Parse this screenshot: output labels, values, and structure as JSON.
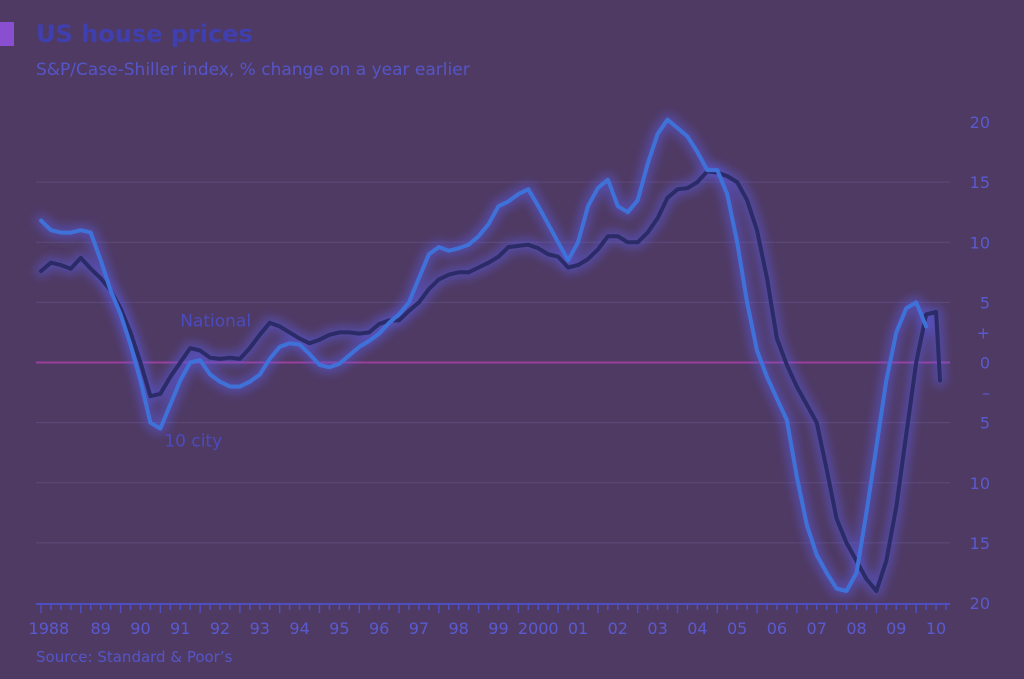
{
  "header": {
    "title": "US house prices",
    "subtitle": "S&P/Case-Shiller index, % change on a year earlier"
  },
  "footer": {
    "source": "Source: Standard & Poor’s"
  },
  "colors": {
    "background": "#4f3a63",
    "grid": "#5e4a78",
    "zero_line": "#9b3f9b",
    "national": "#2b2b68",
    "ten_city": "#3f72d8",
    "glow": "#5a5ae0",
    "text": "#5a5ad0"
  },
  "chart_data": {
    "type": "line",
    "title": "US house prices",
    "subtitle": "S&P/Case-Shiller index, % change on a year earlier",
    "xlabel": "",
    "ylabel": "",
    "x_range": [
      1988,
      2010.75
    ],
    "ylim": [
      -20,
      20
    ],
    "grid": true,
    "legend": "inline labels",
    "y_ticks": [
      {
        "value": 20,
        "label": "20"
      },
      {
        "value": 15,
        "label": "15"
      },
      {
        "value": 10,
        "label": "10"
      },
      {
        "value": 5,
        "label": "5"
      },
      {
        "value": 2.5,
        "label": "+"
      },
      {
        "value": 0,
        "label": "0"
      },
      {
        "value": -2.5,
        "label": "–"
      },
      {
        "value": -5,
        "label": "5"
      },
      {
        "value": -10,
        "label": "10"
      },
      {
        "value": -15,
        "label": "15"
      },
      {
        "value": -20,
        "label": "20"
      }
    ],
    "x_ticks": [
      {
        "value": 1988,
        "label": "1988"
      },
      {
        "value": 1989,
        "label": "89"
      },
      {
        "value": 1990,
        "label": "90"
      },
      {
        "value": 1991,
        "label": "91"
      },
      {
        "value": 1992,
        "label": "92"
      },
      {
        "value": 1993,
        "label": "93"
      },
      {
        "value": 1994,
        "label": "94"
      },
      {
        "value": 1995,
        "label": "95"
      },
      {
        "value": 1996,
        "label": "96"
      },
      {
        "value": 1997,
        "label": "97"
      },
      {
        "value": 1998,
        "label": "98"
      },
      {
        "value": 1999,
        "label": "99"
      },
      {
        "value": 2000,
        "label": "2000"
      },
      {
        "value": 2001,
        "label": "01"
      },
      {
        "value": 2002,
        "label": "02"
      },
      {
        "value": 2003,
        "label": "03"
      },
      {
        "value": 2004,
        "label": "04"
      },
      {
        "value": 2005,
        "label": "05"
      },
      {
        "value": 2006,
        "label": "06"
      },
      {
        "value": 2007,
        "label": "07"
      },
      {
        "value": 2008,
        "label": "08"
      },
      {
        "value": 2009,
        "label": "09"
      },
      {
        "value": 2010,
        "label": "10"
      }
    ],
    "series": [
      {
        "name": "National",
        "label_at": [
          1991.5,
          3
        ],
        "points": [
          [
            1988.0,
            7.6
          ],
          [
            1988.25,
            8.3
          ],
          [
            1988.5,
            8.1
          ],
          [
            1988.75,
            7.8
          ],
          [
            1989.0,
            8.7
          ],
          [
            1989.25,
            7.8
          ],
          [
            1989.5,
            7.0
          ],
          [
            1989.75,
            6.0
          ],
          [
            1990.0,
            4.5
          ],
          [
            1990.25,
            2.5
          ],
          [
            1990.5,
            0.0
          ],
          [
            1990.75,
            -2.8
          ],
          [
            1991.0,
            -2.6
          ],
          [
            1991.25,
            -1.2
          ],
          [
            1991.5,
            0.0
          ],
          [
            1991.75,
            1.2
          ],
          [
            1992.0,
            1.0
          ],
          [
            1992.25,
            0.4
          ],
          [
            1992.5,
            0.3
          ],
          [
            1992.75,
            0.4
          ],
          [
            1993.0,
            0.3
          ],
          [
            1993.25,
            1.2
          ],
          [
            1993.5,
            2.3
          ],
          [
            1993.75,
            3.3
          ],
          [
            1994.0,
            3.0
          ],
          [
            1994.25,
            2.5
          ],
          [
            1994.5,
            2.0
          ],
          [
            1994.75,
            1.6
          ],
          [
            1995.0,
            1.9
          ],
          [
            1995.25,
            2.3
          ],
          [
            1995.5,
            2.5
          ],
          [
            1995.75,
            2.5
          ],
          [
            1996.0,
            2.4
          ],
          [
            1996.25,
            2.5
          ],
          [
            1996.5,
            3.2
          ],
          [
            1996.75,
            3.5
          ],
          [
            1997.0,
            3.5
          ],
          [
            1997.25,
            4.3
          ],
          [
            1997.5,
            5.0
          ],
          [
            1997.75,
            6.1
          ],
          [
            1998.0,
            6.9
          ],
          [
            1998.25,
            7.3
          ],
          [
            1998.5,
            7.5
          ],
          [
            1998.75,
            7.5
          ],
          [
            1999.0,
            7.9
          ],
          [
            1999.25,
            8.3
          ],
          [
            1999.5,
            8.8
          ],
          [
            1999.75,
            9.6
          ],
          [
            2000.0,
            9.7
          ],
          [
            2000.25,
            9.8
          ],
          [
            2000.5,
            9.5
          ],
          [
            2000.75,
            9.0
          ],
          [
            2001.0,
            8.8
          ],
          [
            2001.25,
            7.9
          ],
          [
            2001.5,
            8.1
          ],
          [
            2001.75,
            8.6
          ],
          [
            2002.0,
            9.4
          ],
          [
            2002.25,
            10.5
          ],
          [
            2002.5,
            10.5
          ],
          [
            2002.75,
            10.0
          ],
          [
            2003.0,
            10.0
          ],
          [
            2003.25,
            10.8
          ],
          [
            2003.5,
            12.0
          ],
          [
            2003.75,
            13.7
          ],
          [
            2004.0,
            14.4
          ],
          [
            2004.25,
            14.5
          ],
          [
            2004.5,
            15.0
          ],
          [
            2004.75,
            15.9
          ],
          [
            2005.0,
            15.8
          ],
          [
            2005.25,
            15.5
          ],
          [
            2005.5,
            15.0
          ],
          [
            2005.75,
            13.5
          ],
          [
            2006.0,
            11.0
          ],
          [
            2006.25,
            7.0
          ],
          [
            2006.5,
            2.0
          ],
          [
            2006.75,
            -0.2
          ],
          [
            2007.0,
            -2.0
          ],
          [
            2007.25,
            -3.5
          ],
          [
            2007.5,
            -5.0
          ],
          [
            2007.75,
            -8.9
          ],
          [
            2008.0,
            -13.0
          ],
          [
            2008.25,
            -15.0
          ],
          [
            2008.5,
            -16.5
          ],
          [
            2008.75,
            -18.0
          ],
          [
            2009.0,
            -19.0
          ],
          [
            2009.25,
            -16.5
          ],
          [
            2009.5,
            -12.0
          ],
          [
            2009.75,
            -6.0
          ],
          [
            2010.0,
            0.0
          ],
          [
            2010.25,
            4.0
          ],
          [
            2010.5,
            4.2
          ],
          [
            2010.6,
            -1.5
          ]
        ]
      },
      {
        "name": "10 city",
        "label_at": [
          1991.1,
          -7
        ],
        "points": [
          [
            1988.0,
            11.8
          ],
          [
            1988.25,
            11.0
          ],
          [
            1988.5,
            10.8
          ],
          [
            1988.75,
            10.8
          ],
          [
            1989.0,
            11.0
          ],
          [
            1989.25,
            10.8
          ],
          [
            1989.5,
            8.5
          ],
          [
            1989.75,
            6.0
          ],
          [
            1990.0,
            4.0
          ],
          [
            1990.25,
            1.5
          ],
          [
            1990.5,
            -1.5
          ],
          [
            1990.75,
            -5.0
          ],
          [
            1991.0,
            -5.5
          ],
          [
            1991.25,
            -3.5
          ],
          [
            1991.5,
            -1.5
          ],
          [
            1991.75,
            0.0
          ],
          [
            1992.0,
            0.2
          ],
          [
            1992.25,
            -1.0
          ],
          [
            1992.5,
            -1.6
          ],
          [
            1992.75,
            -2.0
          ],
          [
            1993.0,
            -2.0
          ],
          [
            1993.25,
            -1.6
          ],
          [
            1993.5,
            -1.0
          ],
          [
            1993.75,
            0.3
          ],
          [
            1994.0,
            1.3
          ],
          [
            1994.25,
            1.6
          ],
          [
            1994.5,
            1.5
          ],
          [
            1994.75,
            0.7
          ],
          [
            1995.0,
            -0.2
          ],
          [
            1995.25,
            -0.4
          ],
          [
            1995.5,
            -0.1
          ],
          [
            1995.75,
            0.6
          ],
          [
            1996.0,
            1.3
          ],
          [
            1996.25,
            1.8
          ],
          [
            1996.5,
            2.4
          ],
          [
            1996.75,
            3.3
          ],
          [
            1997.0,
            4.0
          ],
          [
            1997.25,
            5.0
          ],
          [
            1997.5,
            7.0
          ],
          [
            1997.75,
            9.0
          ],
          [
            1998.0,
            9.6
          ],
          [
            1998.25,
            9.3
          ],
          [
            1998.5,
            9.5
          ],
          [
            1998.75,
            9.8
          ],
          [
            1999.0,
            10.5
          ],
          [
            1999.25,
            11.5
          ],
          [
            1999.5,
            13.0
          ],
          [
            1999.75,
            13.4
          ],
          [
            2000.0,
            14.0
          ],
          [
            2000.25,
            14.4
          ],
          [
            2000.5,
            13.0
          ],
          [
            2000.75,
            11.5
          ],
          [
            2001.0,
            10.0
          ],
          [
            2001.25,
            8.5
          ],
          [
            2001.5,
            10.0
          ],
          [
            2001.75,
            13.0
          ],
          [
            2002.0,
            14.5
          ],
          [
            2002.25,
            15.2
          ],
          [
            2002.5,
            13.0
          ],
          [
            2002.75,
            12.5
          ],
          [
            2003.0,
            13.5
          ],
          [
            2003.25,
            16.5
          ],
          [
            2003.5,
            19.0
          ],
          [
            2003.75,
            20.2
          ],
          [
            2004.0,
            19.5
          ],
          [
            2004.25,
            18.8
          ],
          [
            2004.5,
            17.5
          ],
          [
            2004.75,
            16.0
          ],
          [
            2005.0,
            16.0
          ],
          [
            2005.25,
            14.0
          ],
          [
            2005.5,
            10.0
          ],
          [
            2005.75,
            5.0
          ],
          [
            2006.0,
            1.0
          ],
          [
            2006.25,
            -1.2
          ],
          [
            2006.5,
            -3.0
          ],
          [
            2006.75,
            -4.8
          ],
          [
            2007.0,
            -9.5
          ],
          [
            2007.25,
            -13.5
          ],
          [
            2007.5,
            -16.0
          ],
          [
            2007.75,
            -17.5
          ],
          [
            2008.0,
            -18.8
          ],
          [
            2008.25,
            -19.0
          ],
          [
            2008.5,
            -17.5
          ],
          [
            2008.75,
            -12.5
          ],
          [
            2009.0,
            -7.0
          ],
          [
            2009.25,
            -1.5
          ],
          [
            2009.5,
            2.5
          ],
          [
            2009.75,
            4.5
          ],
          [
            2010.0,
            5.0
          ],
          [
            2010.25,
            3.0
          ]
        ]
      }
    ]
  }
}
